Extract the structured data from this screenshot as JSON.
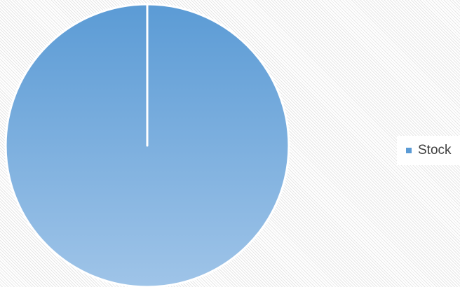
{
  "chart_data": {
    "type": "pie",
    "categories": [
      "Stock"
    ],
    "values": [
      100
    ],
    "colors": [
      "#5b9bd5"
    ],
    "legend": "right"
  }
}
